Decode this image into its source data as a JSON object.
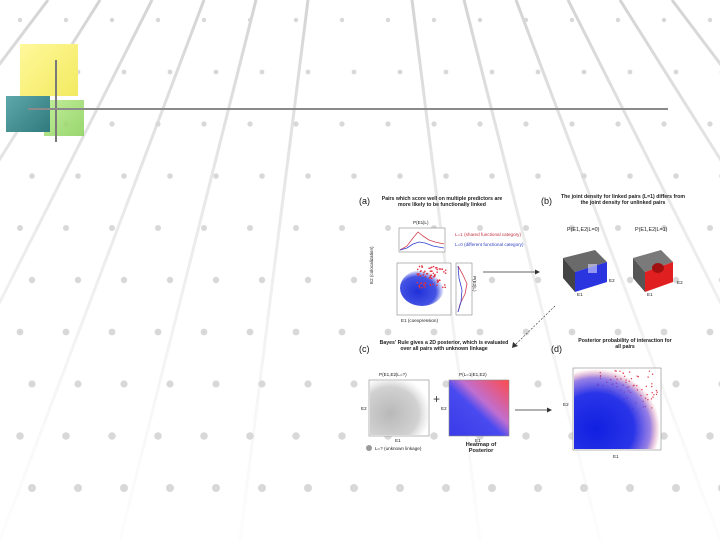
{
  "slide": {
    "background_color": "#ffffff",
    "accent_colors": {
      "yellow": "#f4ee7a",
      "green": "#9fdc6c",
      "teal": "#3a8a8e",
      "line": "#8a8a8a"
    }
  },
  "figure": {
    "panel_a": {
      "letter": "(a)",
      "caption": "Pairs which score well on multiple predictors are more likely to be functionally linked",
      "hist_label": "P(E1|L)",
      "legend_red": "L=1 (shared functional category)",
      "legend_blue": "L=0 (different functional category)",
      "y_axis_label": "E2 (colocalization)",
      "x_axis_label": "E1 (coexpression)",
      "side_hist_label": "P(E2|L)"
    },
    "panel_b": {
      "letter": "(b)",
      "caption": "The joint density for linked pairs (L=1) differs from the joint density for unlinked pairs",
      "label_blue": "P(E1,E2|L=0)",
      "label_red": "P(E1,E2|L=1)",
      "axis_e1": "E1",
      "axis_e2": "E2"
    },
    "panel_c": {
      "letter": "(c)",
      "caption": "Bayes' Rule gives a 2D posterior, which is evaluated over all pairs with unknown linkage",
      "grey_plot_label": "P(E1,E2|L=?)",
      "heat_plot_label": "P(L=1|E1,E2)",
      "plus": "+",
      "heatmap_caption": "Heatmap of Posterior",
      "legend_grey": "L=? (unknown linkage)",
      "axis_e1": "E1",
      "axis_e2": "E2"
    },
    "panel_d": {
      "letter": "(d)",
      "caption": "Posterior probability of interaction for all pairs",
      "axis_e1": "E1",
      "axis_e2": "E2"
    }
  }
}
